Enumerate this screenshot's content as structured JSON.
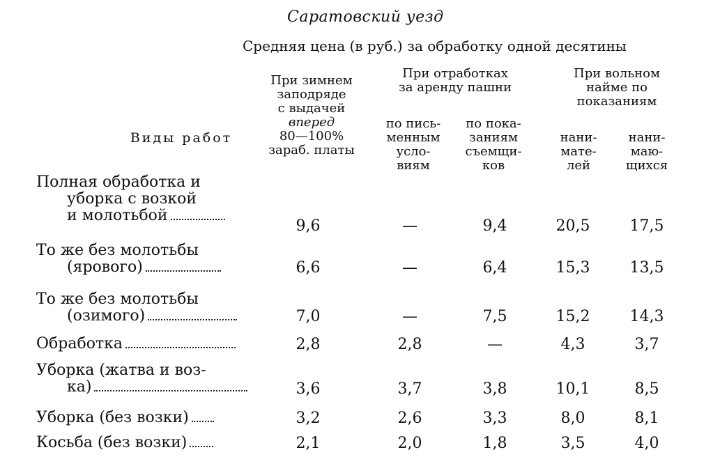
{
  "district": "Саратовский уезд",
  "subtitle": "Средняя цена (в руб.) за обработку одной десятины",
  "headers": {
    "works": "Виды работ",
    "winter": [
      "При зимнем",
      "заподряде",
      "с выдачей",
      "вперед",
      "80—100%",
      "зараб. платы"
    ],
    "lease": [
      "При отработках",
      "за аренду пашни"
    ],
    "lease_written": [
      "по пись-",
      "менным",
      "усло-",
      "виям"
    ],
    "lease_tenants": [
      "по пока-",
      "заниям",
      "съемщи-",
      "ков"
    ],
    "free": [
      "При вольном",
      "найме по",
      "показаниям"
    ],
    "free_employers": [
      "нани-",
      "мате-",
      "лей"
    ],
    "free_hired": [
      "нани-",
      "маю-",
      "щихся"
    ]
  },
  "rows": [
    {
      "label": [
        "Полная обработка и",
        "уборка с возкой",
        "и молотьбой"
      ],
      "values": [
        "9,6",
        "—",
        "9,4",
        "20,5",
        "17,5"
      ]
    },
    {
      "label": [
        "То же без молотьбы",
        "(ярового)"
      ],
      "values": [
        "6,6",
        "—",
        "6,4",
        "15,3",
        "13,5"
      ]
    },
    {
      "label": [
        "То же без молотьбы",
        "(озимого)"
      ],
      "values": [
        "7,0",
        "—",
        "7,5",
        "15,2",
        "14,3"
      ]
    },
    {
      "label": [
        "Обработка"
      ],
      "values": [
        "2,8",
        "2,8",
        "—",
        "4,3",
        "3,7"
      ]
    },
    {
      "label": [
        "Уборка (жатва и воз-",
        "ка)"
      ],
      "values": [
        "3,6",
        "3,7",
        "3,8",
        "10,1",
        "8,5"
      ]
    },
    {
      "label": [
        "Уборка (без возки)"
      ],
      "values": [
        "3,2",
        "2,6",
        "3,3",
        "8,0",
        "8,1"
      ]
    },
    {
      "label": [
        "Косьба (без возки)"
      ],
      "values": [
        "2,1",
        "2,0",
        "1,8",
        "3,5",
        "4,0"
      ]
    }
  ]
}
